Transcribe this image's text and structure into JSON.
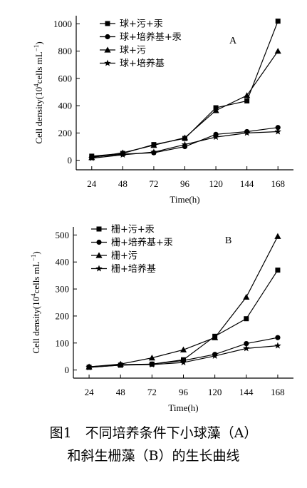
{
  "caption": {
    "line1": "图1　不同培养条件下小球藻（A）",
    "line2": "和斜生栅藻（B）的生长曲线"
  },
  "chart_data": [
    {
      "type": "line",
      "panel_label": "A",
      "xlabel": "Time(h)",
      "ylabel_main": "Cell density(10",
      "ylabel_sup": "4",
      "ylabel_rest": "cells mL",
      "ylabel_sup2": "−1",
      "ylabel_close": ")",
      "x": [
        24,
        48,
        72,
        96,
        120,
        144,
        168
      ],
      "xlim": [
        12,
        180
      ],
      "ylim": [
        -70,
        1060
      ],
      "yticks": [
        0,
        200,
        400,
        600,
        800,
        1000
      ],
      "legend_position": "top-left",
      "series": [
        {
          "name": "球+污+汞",
          "marker": "square",
          "values": [
            30,
            50,
            115,
            160,
            385,
            435,
            1020
          ]
        },
        {
          "name": "球+培养基+汞",
          "marker": "circle",
          "values": [
            25,
            45,
            55,
            100,
            190,
            210,
            240
          ]
        },
        {
          "name": "球+污",
          "marker": "triangle",
          "values": [
            20,
            55,
            110,
            165,
            365,
            475,
            800
          ]
        },
        {
          "name": "球+培养基",
          "marker": "star",
          "values": [
            15,
            40,
            60,
            115,
            170,
            200,
            210
          ]
        }
      ]
    },
    {
      "type": "line",
      "panel_label": "B",
      "xlabel": "Time(h)",
      "ylabel_main": "Cell density(10",
      "ylabel_sup": "4",
      "ylabel_rest": "cells mL",
      "ylabel_sup2": "−1",
      "ylabel_close": ")",
      "x": [
        24,
        48,
        72,
        96,
        120,
        144,
        168
      ],
      "xlim": [
        12,
        180
      ],
      "ylim": [
        -30,
        530
      ],
      "yticks": [
        0,
        100,
        200,
        300,
        400,
        500
      ],
      "legend_position": "top-left",
      "series": [
        {
          "name": "栅+污+汞",
          "marker": "square",
          "values": [
            10,
            18,
            22,
            38,
            125,
            190,
            370
          ]
        },
        {
          "name": "栅+培养基+汞",
          "marker": "circle",
          "values": [
            12,
            20,
            22,
            35,
            58,
            98,
            120
          ]
        },
        {
          "name": "栅+污",
          "marker": "triangle",
          "values": [
            12,
            22,
            45,
            75,
            120,
            270,
            495
          ]
        },
        {
          "name": "栅+培养基",
          "marker": "star",
          "values": [
            10,
            18,
            20,
            28,
            52,
            80,
            90
          ]
        }
      ]
    }
  ]
}
